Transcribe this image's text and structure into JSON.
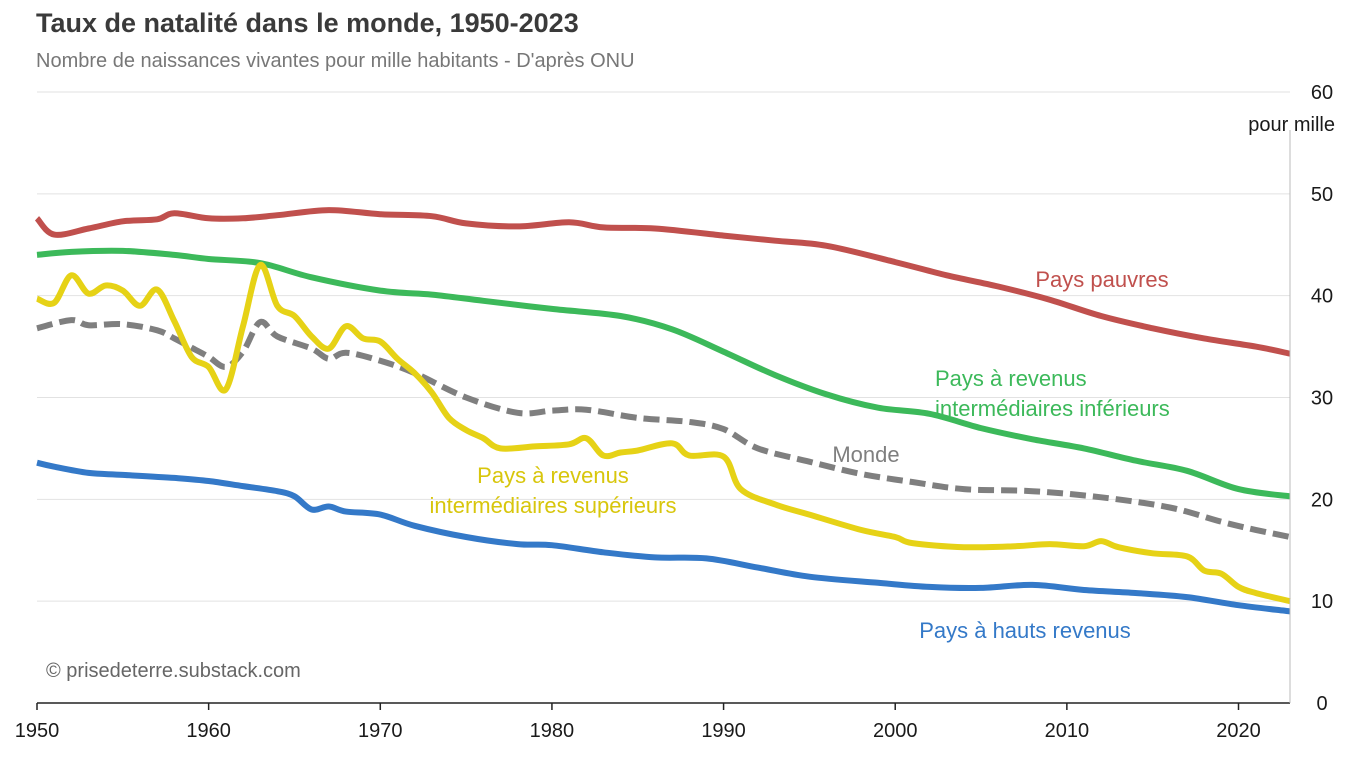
{
  "header": {
    "title": "Taux de natalité dans le monde, 1950-2023",
    "subtitle": "Nombre de naissances vivantes pour mille habitants - D'après ONU"
  },
  "credit": "© prisedeterre.substack.com",
  "chart_data": {
    "type": "line",
    "title": "Taux de natalité dans le monde, 1950-2023",
    "subtitle": "Nombre de naissances vivantes pour mille habitants - D'après ONU",
    "xlabel": "",
    "ylabel": "pour mille",
    "xlim": [
      1950,
      2023
    ],
    "ylim": [
      0,
      60
    ],
    "x_ticks": [
      1950,
      1960,
      1970,
      1980,
      1990,
      2000,
      2010,
      2020
    ],
    "y_ticks": [
      0,
      10,
      20,
      30,
      40,
      50,
      60
    ],
    "y_unit_label": "pour mille",
    "grid": "horizontal",
    "series": [
      {
        "name": "Pays pauvres",
        "label_lines": [
          "Pays pauvres"
        ],
        "color": "#c0504d",
        "dashed": false,
        "points": [
          [
            1950,
            47.6
          ],
          [
            1951,
            46.0
          ],
          [
            1953,
            46.6
          ],
          [
            1955,
            47.3
          ],
          [
            1957,
            47.5
          ],
          [
            1958,
            48.1
          ],
          [
            1960,
            47.6
          ],
          [
            1962,
            47.6
          ],
          [
            1964,
            47.9
          ],
          [
            1967,
            48.4
          ],
          [
            1970,
            48.0
          ],
          [
            1973,
            47.8
          ],
          [
            1975,
            47.1
          ],
          [
            1978,
            46.8
          ],
          [
            1981,
            47.2
          ],
          [
            1983,
            46.7
          ],
          [
            1986,
            46.6
          ],
          [
            1990,
            45.9
          ],
          [
            1993,
            45.4
          ],
          [
            1996,
            44.9
          ],
          [
            2000,
            43.3
          ],
          [
            2003,
            42.0
          ],
          [
            2006,
            40.9
          ],
          [
            2009,
            39.6
          ],
          [
            2012,
            38.0
          ],
          [
            2015,
            36.8
          ],
          [
            2018,
            35.8
          ],
          [
            2021,
            35.0
          ],
          [
            2023,
            34.3
          ]
        ]
      },
      {
        "name": "Pays à revenus intermédiaires inférieurs",
        "label_lines": [
          "Pays à revenus",
          "intermédiaires inférieurs"
        ],
        "color": "#3cb95a",
        "dashed": false,
        "points": [
          [
            1950,
            44.0
          ],
          [
            1952,
            44.3
          ],
          [
            1955,
            44.4
          ],
          [
            1958,
            44.0
          ],
          [
            1960,
            43.6
          ],
          [
            1963,
            43.2
          ],
          [
            1966,
            41.8
          ],
          [
            1970,
            40.5
          ],
          [
            1973,
            40.1
          ],
          [
            1976,
            39.5
          ],
          [
            1980,
            38.7
          ],
          [
            1984,
            38.0
          ],
          [
            1987,
            36.7
          ],
          [
            1990,
            34.5
          ],
          [
            1993,
            32.2
          ],
          [
            1996,
            30.3
          ],
          [
            1999,
            29.0
          ],
          [
            2002,
            28.4
          ],
          [
            2005,
            27.0
          ],
          [
            2008,
            25.9
          ],
          [
            2011,
            25.0
          ],
          [
            2014,
            23.8
          ],
          [
            2017,
            22.8
          ],
          [
            2020,
            21.0
          ],
          [
            2023,
            20.3
          ]
        ]
      },
      {
        "name": "Monde",
        "label_lines": [
          "Monde"
        ],
        "color": "#7f7f7f",
        "dashed": true,
        "points": [
          [
            1950,
            36.8
          ],
          [
            1952,
            37.6
          ],
          [
            1953,
            37.1
          ],
          [
            1955,
            37.2
          ],
          [
            1957,
            36.6
          ],
          [
            1958,
            35.8
          ],
          [
            1959,
            34.9
          ],
          [
            1960,
            34.0
          ],
          [
            1961,
            33.0
          ],
          [
            1962,
            34.5
          ],
          [
            1963,
            37.4
          ],
          [
            1964,
            36.0
          ],
          [
            1966,
            34.8
          ],
          [
            1967,
            33.8
          ],
          [
            1968,
            34.4
          ],
          [
            1970,
            33.6
          ],
          [
            1972,
            32.4
          ],
          [
            1975,
            30.0
          ],
          [
            1978,
            28.5
          ],
          [
            1980,
            28.7
          ],
          [
            1982,
            28.8
          ],
          [
            1985,
            28.0
          ],
          [
            1988,
            27.6
          ],
          [
            1990,
            26.9
          ],
          [
            1992,
            25.0
          ],
          [
            1995,
            23.7
          ],
          [
            1998,
            22.5
          ],
          [
            2001,
            21.7
          ],
          [
            2004,
            21.0
          ],
          [
            2008,
            20.8
          ],
          [
            2012,
            20.2
          ],
          [
            2016,
            19.2
          ],
          [
            2019,
            17.8
          ],
          [
            2021,
            17.0
          ],
          [
            2023,
            16.3
          ]
        ]
      },
      {
        "name": "Pays à revenus intermédiaires supérieurs",
        "label_lines": [
          "Pays à revenus",
          "intermédiaires supérieurs"
        ],
        "color": "#e6d216",
        "dashed": false,
        "points": [
          [
            1950,
            39.7
          ],
          [
            1951,
            39.3
          ],
          [
            1952,
            42.0
          ],
          [
            1953,
            40.2
          ],
          [
            1954,
            41.0
          ],
          [
            1955,
            40.5
          ],
          [
            1956,
            39.0
          ],
          [
            1957,
            40.6
          ],
          [
            1958,
            37.5
          ],
          [
            1959,
            34.0
          ],
          [
            1960,
            33.0
          ],
          [
            1961,
            30.8
          ],
          [
            1962,
            37.0
          ],
          [
            1963,
            43.0
          ],
          [
            1964,
            39.0
          ],
          [
            1965,
            38.0
          ],
          [
            1966,
            36.0
          ],
          [
            1967,
            34.8
          ],
          [
            1968,
            37.0
          ],
          [
            1969,
            35.8
          ],
          [
            1970,
            35.5
          ],
          [
            1971,
            33.8
          ],
          [
            1972,
            32.4
          ],
          [
            1973,
            30.5
          ],
          [
            1974,
            28.0
          ],
          [
            1975,
            26.8
          ],
          [
            1976,
            26.0
          ],
          [
            1977,
            25.0
          ],
          [
            1979,
            25.2
          ],
          [
            1981,
            25.4
          ],
          [
            1982,
            26.0
          ],
          [
            1983,
            24.3
          ],
          [
            1984,
            24.6
          ],
          [
            1985,
            24.8
          ],
          [
            1987,
            25.5
          ],
          [
            1988,
            24.3
          ],
          [
            1990,
            24.2
          ],
          [
            1991,
            21.0
          ],
          [
            1993,
            19.5
          ],
          [
            1995,
            18.5
          ],
          [
            1998,
            17.0
          ],
          [
            2000,
            16.3
          ],
          [
            2001,
            15.7
          ],
          [
            2004,
            15.3
          ],
          [
            2007,
            15.4
          ],
          [
            2009,
            15.6
          ],
          [
            2011,
            15.4
          ],
          [
            2012,
            15.9
          ],
          [
            2013,
            15.3
          ],
          [
            2015,
            14.7
          ],
          [
            2017,
            14.4
          ],
          [
            2018,
            13.0
          ],
          [
            2019,
            12.7
          ],
          [
            2020,
            11.4
          ],
          [
            2021,
            10.8
          ],
          [
            2023,
            10.0
          ]
        ]
      },
      {
        "name": "Pays à hauts revenus",
        "label_lines": [
          "Pays à hauts revenus"
        ],
        "color": "#3479c8",
        "dashed": false,
        "points": [
          [
            1950,
            23.6
          ],
          [
            1951,
            23.2
          ],
          [
            1953,
            22.6
          ],
          [
            1955,
            22.4
          ],
          [
            1958,
            22.1
          ],
          [
            1960,
            21.8
          ],
          [
            1962,
            21.3
          ],
          [
            1964,
            20.8
          ],
          [
            1965,
            20.3
          ],
          [
            1966,
            19.0
          ],
          [
            1967,
            19.3
          ],
          [
            1968,
            18.8
          ],
          [
            1970,
            18.5
          ],
          [
            1972,
            17.4
          ],
          [
            1975,
            16.3
          ],
          [
            1978,
            15.6
          ],
          [
            1980,
            15.5
          ],
          [
            1983,
            14.8
          ],
          [
            1986,
            14.3
          ],
          [
            1989,
            14.2
          ],
          [
            1992,
            13.3
          ],
          [
            1995,
            12.4
          ],
          [
            1999,
            11.8
          ],
          [
            2002,
            11.4
          ],
          [
            2005,
            11.3
          ],
          [
            2008,
            11.6
          ],
          [
            2011,
            11.1
          ],
          [
            2014,
            10.8
          ],
          [
            2017,
            10.4
          ],
          [
            2020,
            9.6
          ],
          [
            2023,
            9.0
          ]
        ]
      }
    ],
    "annotations": {
      "series_label_positions": [
        "upper-right of red line",
        "below-right of green line",
        "above grey dashed line",
        "below yellow line",
        "below blue line"
      ]
    }
  },
  "colors": {
    "grid": "#e2e2e2",
    "axis": "#222222"
  }
}
